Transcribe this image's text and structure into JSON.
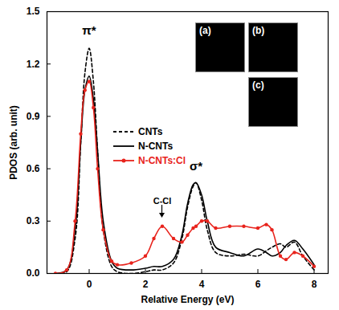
{
  "chart_data": {
    "type": "line",
    "xlabel": "Relative Energy (eV)",
    "ylabel": "PDOS (arb. unit)",
    "x": [
      -1.2,
      -0.8,
      -0.5,
      -0.3,
      -0.15,
      0,
      0.15,
      0.3,
      0.5,
      0.8,
      1.0,
      1.5,
      2.0,
      2.3,
      2.6,
      3.0,
      3.3,
      3.5,
      3.7,
      3.8,
      4.0,
      4.2,
      4.5,
      5.0,
      5.5,
      6.0,
      6.3,
      6.5,
      6.8,
      7.0,
      7.3,
      7.6,
      8.0
    ],
    "series": [
      {
        "name": "CNTs",
        "color": "#000000",
        "line_style": "dashed",
        "values": [
          0,
          0.01,
          0.2,
          0.75,
          1.15,
          1.29,
          1.1,
          0.7,
          0.25,
          0.04,
          0.01,
          0.0,
          0.01,
          0.02,
          0.02,
          0.06,
          0.2,
          0.38,
          0.5,
          0.52,
          0.42,
          0.25,
          0.12,
          0.1,
          0.11,
          0.1,
          0.13,
          0.15,
          0.17,
          0.15,
          0.18,
          0.1,
          0.02
        ]
      },
      {
        "name": "N-CNTs",
        "color": "#000000",
        "line_style": "solid",
        "values": [
          0,
          0.02,
          0.25,
          0.75,
          1.05,
          1.13,
          1.0,
          0.7,
          0.3,
          0.07,
          0.03,
          0.02,
          0.03,
          0.04,
          0.04,
          0.08,
          0.22,
          0.4,
          0.51,
          0.52,
          0.45,
          0.3,
          0.15,
          0.12,
          0.1,
          0.14,
          0.12,
          0.1,
          0.12,
          0.16,
          0.19,
          0.14,
          0.05
        ]
      },
      {
        "name": "N-CNTs:Cl",
        "color": "#e8231c",
        "line_style": "solid",
        "marker": "circle",
        "values": [
          0,
          0.02,
          0.3,
          0.8,
          1.05,
          1.1,
          0.95,
          0.6,
          0.25,
          0.07,
          0.05,
          0.06,
          0.1,
          0.2,
          0.27,
          0.2,
          0.18,
          0.22,
          0.26,
          0.27,
          0.3,
          0.3,
          0.26,
          0.27,
          0.27,
          0.26,
          0.28,
          0.25,
          0.1,
          0.08,
          0.12,
          0.1,
          0.04
        ]
      }
    ],
    "xlim": [
      -1.5,
      8.5
    ],
    "xticks": [
      0,
      2,
      4,
      6,
      8
    ],
    "ylim": [
      0,
      1.5
    ],
    "yticks": [
      {
        "value": 0,
        "label": "0.0"
      },
      0.3,
      0.6,
      0.9,
      1.2,
      1.5
    ],
    "legend": "upper left",
    "annotations": [
      {
        "text": "π*",
        "x": 0,
        "y": 1.37
      },
      {
        "text": "σ*",
        "x": 3.8,
        "y": 0.59
      },
      {
        "text": "C-Cl",
        "x": 2.6,
        "y": 0.4,
        "arrow": true
      }
    ],
    "insets": [
      "(a)",
      "(b)",
      "(c)"
    ]
  }
}
